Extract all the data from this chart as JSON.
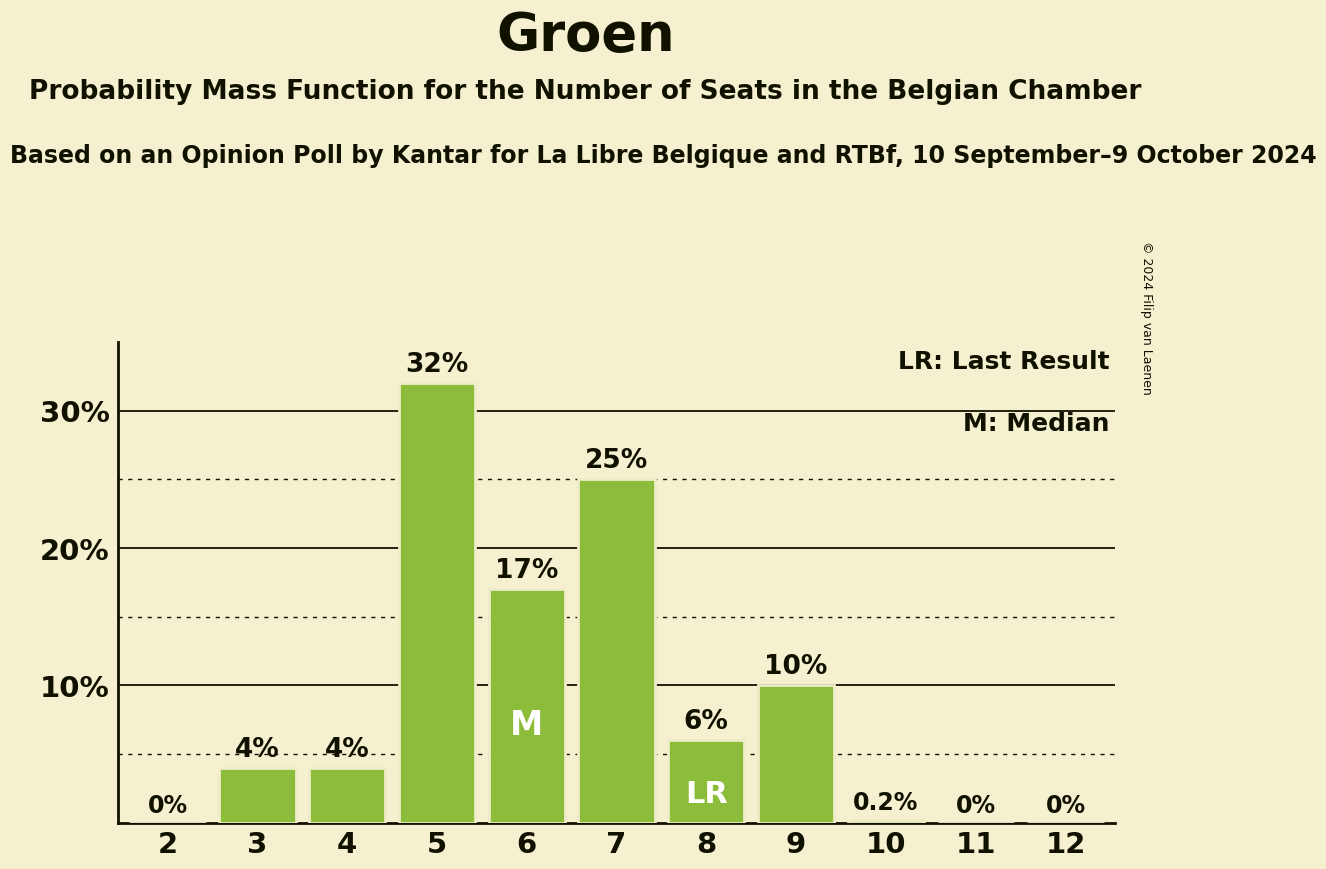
{
  "title": "Groen",
  "subtitle": "Probability Mass Function for the Number of Seats in the Belgian Chamber",
  "sub_subtitle": "Based on an Opinion Poll by Kantar for La Libre Belgique and RTBf, 10 September–9 October 2024",
  "copyright": "© 2024 Filip van Laenen",
  "categories": [
    2,
    3,
    4,
    5,
    6,
    7,
    8,
    9,
    10,
    11,
    12
  ],
  "values": [
    0.0,
    4.0,
    4.0,
    32.0,
    17.0,
    25.0,
    6.0,
    10.0,
    0.2,
    0.0,
    0.0
  ],
  "bar_color": "#8BBD3A",
  "bar_edge_color": "#f0ecc8",
  "background_color": "#f5f0d0",
  "text_color": "#111100",
  "label_color_inside": "#ffffff",
  "lr_seat": 8,
  "median_seat": 6,
  "ylim": [
    0,
    35
  ],
  "yticks_solid": [
    10,
    20,
    30
  ],
  "yticks_dotted": [
    5,
    15,
    25
  ],
  "legend_lr": "LR: Last Result",
  "legend_m": "M: Median",
  "value_labels": [
    "0%",
    "4%",
    "4%",
    "32%",
    "17%",
    "25%",
    "6%",
    "10%",
    "0.2%",
    "0%",
    "0%"
  ]
}
